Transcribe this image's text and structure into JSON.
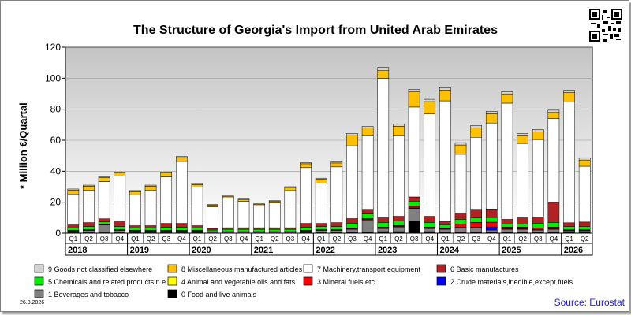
{
  "chart_data": {
    "type": "bar",
    "stacked": true,
    "title": "The Structure of Georgia's Import from United Arab Emirates",
    "ylabel": "* Million €/Quartal",
    "ylim": [
      0,
      120
    ],
    "yticks": [
      0,
      20,
      40,
      60,
      80,
      100,
      120
    ],
    "grid": "horizontal",
    "legend_position": "bottom",
    "categories": [
      "2018 Q1",
      "2018 Q2",
      "2018 Q3",
      "2018 Q4",
      "2019 Q1",
      "2019 Q2",
      "2019 Q3",
      "2019 Q4",
      "2020 Q1",
      "2020 Q2",
      "2020 Q3",
      "2020 Q4",
      "2021 Q1",
      "2021 Q2",
      "2021 Q3",
      "2021 Q4",
      "2022 Q1",
      "2022 Q2",
      "2022 Q3",
      "2022 Q4",
      "2023 Q1",
      "2023 Q2",
      "2023 Q3",
      "2023 Q4",
      "2024 Q1",
      "2024 Q2",
      "2024 Q3",
      "2024 Q4",
      "2025 Q1",
      "2025 Q2",
      "2025 Q3",
      "2025 Q4",
      "2026 Q1",
      "2026 Q2"
    ],
    "quarter_labels": [
      "Q1",
      "Q2",
      "Q3",
      "Q4",
      "Q1",
      "Q2",
      "Q3",
      "Q4",
      "Q1",
      "Q2",
      "Q3",
      "Q4",
      "Q1",
      "Q2",
      "Q3",
      "Q4",
      "Q1",
      "Q2",
      "Q3",
      "Q4",
      "Q1",
      "Q2",
      "Q3",
      "Q4",
      "Q1",
      "Q2",
      "Q3",
      "Q4",
      "Q1",
      "Q2",
      "Q3",
      "Q4",
      "Q1",
      "Q2"
    ],
    "years": [
      "2018",
      "2019",
      "2020",
      "2021",
      "2022",
      "2023",
      "2024",
      "2025",
      "2026"
    ],
    "series": [
      {
        "name": "0 Food and live animals",
        "color": "#000000",
        "values": [
          0.3,
          0.3,
          0.3,
          0.3,
          0.3,
          0.3,
          0.3,
          0.3,
          0.3,
          0.2,
          0.2,
          0.2,
          0.2,
          0.2,
          0.2,
          0.3,
          0.3,
          0.3,
          0.5,
          0.5,
          1,
          1,
          8,
          1,
          0.5,
          0.5,
          0.5,
          0.5,
          0.5,
          0.5,
          0.5,
          0.5,
          0.5,
          0.5
        ]
      },
      {
        "name": "1 Beverages and tobacco",
        "color": "#808080",
        "values": [
          1,
          1.5,
          5,
          1.5,
          1,
          1,
          1,
          1,
          1,
          0.5,
          0.5,
          0.5,
          0.5,
          0.5,
          0.5,
          1,
          1.5,
          1.5,
          2,
          8,
          2,
          3,
          8,
          2,
          2,
          3,
          3,
          1.5,
          2,
          2,
          1.5,
          2,
          1,
          1
        ]
      },
      {
        "name": "2 Crude materials,inedible,except fuels",
        "color": "#0000ff",
        "values": [
          0.2,
          0.2,
          0.2,
          0.2,
          0.2,
          0.2,
          0.2,
          0.2,
          0.2,
          0.1,
          0.1,
          0.1,
          0.1,
          0.1,
          0.1,
          0.2,
          0.2,
          0.2,
          0.3,
          0.3,
          0.3,
          0.3,
          0.3,
          0.3,
          0.3,
          0.3,
          0.3,
          2,
          0.3,
          0.3,
          0.3,
          0.3,
          0.3,
          0.3
        ]
      },
      {
        "name": "3 Mineral fuels etc",
        "color": "#ff0000",
        "values": [
          0.2,
          0.2,
          0.2,
          0.2,
          0.2,
          0.2,
          0.2,
          0.2,
          0.2,
          0.1,
          0.1,
          0.1,
          0.1,
          0.1,
          0.1,
          0.2,
          0.2,
          0.2,
          0.5,
          0.5,
          0.5,
          0.5,
          1,
          0.5,
          0.5,
          2,
          3,
          3,
          1,
          1,
          1,
          1,
          0.3,
          0.3
        ]
      },
      {
        "name": "4 Animal and vegetable oils and fats",
        "color": "#ffff00",
        "values": [
          0.1,
          0.1,
          0.1,
          0.1,
          0.1,
          0.1,
          0.1,
          0.1,
          0.1,
          0.1,
          0.1,
          0.1,
          0.1,
          0.1,
          0.1,
          0.1,
          0.1,
          0.1,
          0.1,
          0.1,
          0.1,
          0.1,
          0.1,
          0.1,
          0.1,
          0.1,
          0.1,
          0.1,
          0.1,
          0.1,
          0.1,
          0.1,
          0.1,
          0.1
        ]
      },
      {
        "name": "5 Chemicals and related products,n.e.s.",
        "color": "#00ee00",
        "values": [
          1.5,
          2,
          1.5,
          2,
          1.5,
          1.5,
          2,
          2,
          1.5,
          1,
          1.5,
          1.5,
          1.5,
          1.5,
          1.5,
          2,
          2,
          2,
          3,
          3,
          3,
          3,
          3,
          3,
          2,
          3,
          3,
          3,
          2,
          2,
          3,
          3,
          2,
          2
        ]
      },
      {
        "name": "6 Basic manufactures",
        "color": "#b22222",
        "values": [
          2,
          2.5,
          2,
          3.5,
          1.5,
          1.5,
          2.5,
          2.5,
          1.5,
          1,
          1,
          1,
          1,
          1,
          1,
          2.5,
          2,
          2.5,
          3,
          2.5,
          3,
          3,
          3,
          4,
          2,
          4,
          5,
          5,
          3,
          4,
          4,
          13,
          2.5,
          3
        ]
      },
      {
        "name": "7 Machinery,transport equipment",
        "color": "#ffffff",
        "values": [
          20,
          21,
          24,
          29,
          20,
          23,
          30,
          40,
          25,
          14,
          19,
          17,
          14,
          16,
          24,
          36,
          26,
          36,
          47,
          48,
          90,
          52,
          58,
          66,
          78,
          38,
          47,
          56,
          75,
          48,
          50,
          54,
          78,
          36
        ]
      },
      {
        "name": "8 Miscellaneous manufactured articles",
        "color": "#ffc000",
        "values": [
          2.5,
          2.5,
          2.5,
          2,
          2,
          2.5,
          2.5,
          2.5,
          1.5,
          1,
          1,
          1,
          1,
          1,
          2,
          2.5,
          2.5,
          2.5,
          7,
          5,
          5,
          6,
          10,
          8,
          7,
          6,
          6,
          6,
          6,
          5,
          5,
          4,
          6,
          4
        ]
      },
      {
        "name": "9 Goods not classified elsewhere",
        "color": "#d3d3d3",
        "values": [
          0.7,
          0.7,
          0.7,
          0.7,
          0.7,
          0.7,
          0.7,
          0.7,
          0.7,
          0.5,
          0.5,
          0.5,
          0.5,
          0.5,
          0.5,
          0.7,
          0.7,
          0.7,
          1,
          1,
          2,
          1.5,
          1.5,
          1.5,
          1.5,
          1.5,
          1.5,
          1.5,
          1.5,
          1.5,
          1.5,
          1.5,
          1.5,
          1.5
        ]
      }
    ]
  },
  "legend": {
    "rows": [
      [
        {
          "label": "9 Goods not classified elsewhere",
          "color": "#d3d3d3"
        },
        {
          "label": "8 Miscellaneous manufactured articles",
          "color": "#ffc000"
        },
        {
          "label": "7 Machinery,transport equipment",
          "color": "#ffffff"
        },
        {
          "label": "6 Basic manufactures",
          "color": "#b22222"
        }
      ],
      [
        {
          "label": "5 Chemicals and related products,n.e.s.",
          "color": "#00ee00"
        },
        {
          "label": "4 Animal and vegetable oils and fats",
          "color": "#ffff00"
        },
        {
          "label": "3 Mineral fuels etc",
          "color": "#ff0000"
        },
        {
          "label": "2 Crude materials,inedible,except fuels",
          "color": "#0000ff"
        }
      ],
      [
        {
          "label": "1 Beverages and tobacco",
          "color": "#808080"
        },
        {
          "label": "0 Food and live animals",
          "color": "#000000"
        }
      ]
    ]
  },
  "footer": {
    "date": "26.8.2026",
    "source": "Source: Eurostat"
  }
}
